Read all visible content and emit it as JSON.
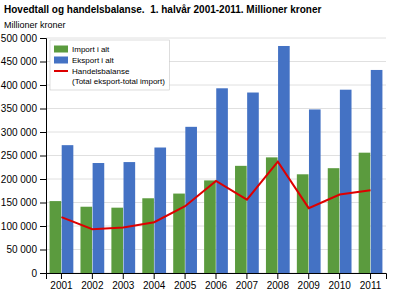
{
  "chart_data": {
    "type": "bar",
    "title": "Hovedtall og handelsbalanse.  1. halvår 2001-2011. Millioner kroner",
    "ylabel": "Millioner kroner",
    "categories": [
      "2001",
      "2002",
      "2003",
      "2004",
      "2005",
      "2006",
      "2007",
      "2008",
      "2009",
      "2010",
      "2011"
    ],
    "series": [
      {
        "name": "Import i alt",
        "type": "bar",
        "color": "#5b9b3e",
        "values": [
          153000,
          141000,
          139000,
          159000,
          169000,
          197000,
          228000,
          246000,
          210000,
          223000,
          256000
        ]
      },
      {
        "name": "Eksport i alt",
        "type": "bar",
        "color": "#4472c4",
        "values": [
          272000,
          234000,
          236000,
          267000,
          311000,
          393000,
          384000,
          483000,
          348000,
          390000,
          432000
        ]
      },
      {
        "name": "Handelsbalanse\n(Total eksport-total import)",
        "type": "line",
        "color": "#dd0000",
        "values": [
          119000,
          93000,
          97000,
          108000,
          142000,
          196000,
          156000,
          237000,
          138000,
          167000,
          176000
        ]
      }
    ],
    "ylim": [
      0,
      500000
    ],
    "yticks": [
      0,
      {
        "value": 50000,
        "label": "50 000"
      },
      {
        "value": 100000,
        "label": "100 000"
      },
      {
        "value": 150000,
        "label": "150 000"
      },
      {
        "value": 200000,
        "label": "200 000"
      },
      {
        "value": 250000,
        "label": "250 000"
      },
      {
        "value": 300000,
        "label": "300 000"
      },
      {
        "value": 350000,
        "label": "350 000"
      },
      {
        "value": 400000,
        "label": "400 000"
      },
      {
        "value": 450000,
        "label": "450 000"
      },
      {
        "value": 500000,
        "label": "500 000"
      }
    ],
    "grid": true,
    "legend": "upper left"
  }
}
